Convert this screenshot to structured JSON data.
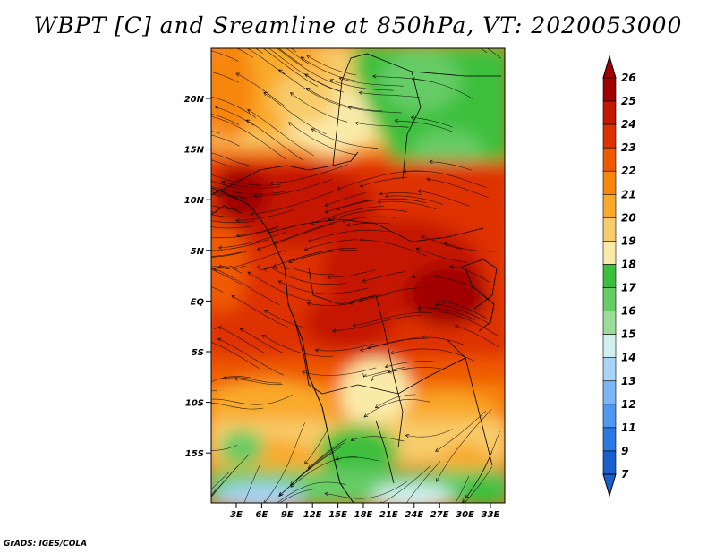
{
  "title": "WBPT [C] and Sreamline at 850hPa, VT: 2020053000",
  "footer": "GrADS: IGES/COLA",
  "map": {
    "lat_labels": [
      "20N",
      "15N",
      "10N",
      "5N",
      "EQ",
      "5S",
      "10S",
      "15S"
    ],
    "lon_labels": [
      "3E",
      "6E",
      "9E",
      "12E",
      "15E",
      "18E",
      "21E",
      "24E",
      "27E",
      "30E",
      "33E"
    ]
  },
  "colorbar": {
    "labels": [
      "26",
      "25",
      "24",
      "23",
      "22",
      "21",
      "20",
      "19",
      "18",
      "17",
      "16",
      "15",
      "14",
      "13",
      "12",
      "11",
      "9",
      "7"
    ],
    "colors": [
      "#a00000",
      "#c41800",
      "#de3000",
      "#ef5a00",
      "#f7860a",
      "#f9aa2a",
      "#f8cc6a",
      "#faeaa8",
      "#3cbf3c",
      "#66cc66",
      "#99dd99",
      "#d0f0f0",
      "#a9d3f7",
      "#7cb6f5",
      "#4f98f0",
      "#2a78e4",
      "#1a5fd0"
    ],
    "top_color": "#a00000",
    "bottom_color": "#1a5fd0"
  }
}
